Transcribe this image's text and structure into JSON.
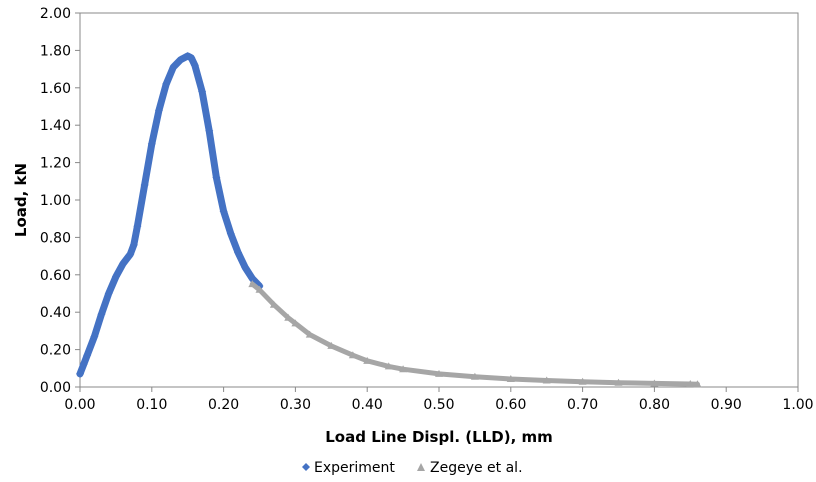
{
  "chart_data": {
    "type": "scatter",
    "title": "",
    "xlabel": "Load Line Displ. (LLD), mm",
    "ylabel": "Load, kN",
    "xlim": [
      0,
      1.0
    ],
    "ylim": [
      0,
      2.0
    ],
    "x_ticks": [
      "0.00",
      "0.10",
      "0.20",
      "0.30",
      "0.40",
      "0.50",
      "0.60",
      "0.70",
      "0.80",
      "0.90",
      "1.00"
    ],
    "y_ticks": [
      "0.00",
      "0.20",
      "0.40",
      "0.60",
      "0.80",
      "1.00",
      "1.20",
      "1.40",
      "1.60",
      "1.80",
      "2.00"
    ],
    "grid": false,
    "legend_position": "bottom",
    "series": [
      {
        "name": "Experiment",
        "color": "#4472C4",
        "marker": "diamond",
        "x": [
          0.0,
          0.005,
          0.01,
          0.02,
          0.03,
          0.04,
          0.05,
          0.06,
          0.07,
          0.075,
          0.08,
          0.09,
          0.1,
          0.11,
          0.12,
          0.13,
          0.14,
          0.15,
          0.155,
          0.16,
          0.17,
          0.18,
          0.19,
          0.2,
          0.21,
          0.22,
          0.23,
          0.24,
          0.25
        ],
        "y": [
          0.07,
          0.12,
          0.17,
          0.27,
          0.39,
          0.5,
          0.59,
          0.66,
          0.71,
          0.76,
          0.86,
          1.08,
          1.3,
          1.48,
          1.62,
          1.71,
          1.75,
          1.77,
          1.76,
          1.72,
          1.58,
          1.37,
          1.12,
          0.94,
          0.82,
          0.72,
          0.64,
          0.58,
          0.54
        ]
      },
      {
        "name": "Zegeye et al.",
        "color": "#A6A6A6",
        "marker": "triangle",
        "x": [
          0.24,
          0.25,
          0.27,
          0.29,
          0.3,
          0.32,
          0.35,
          0.38,
          0.4,
          0.43,
          0.45,
          0.5,
          0.55,
          0.6,
          0.65,
          0.7,
          0.75,
          0.8,
          0.85,
          0.86
        ],
        "y": [
          0.55,
          0.52,
          0.44,
          0.37,
          0.34,
          0.28,
          0.22,
          0.17,
          0.14,
          0.11,
          0.095,
          0.07,
          0.055,
          0.043,
          0.035,
          0.028,
          0.023,
          0.019,
          0.016,
          0.015
        ]
      }
    ]
  }
}
